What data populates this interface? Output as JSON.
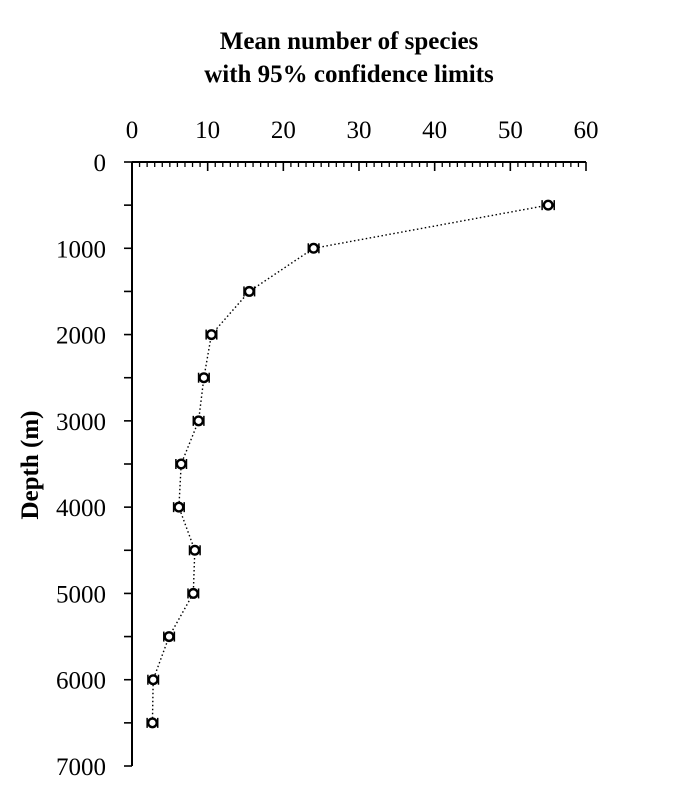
{
  "chart_data": {
    "type": "scatter",
    "title_lines": [
      "Mean number of species",
      "with 95% confidence limits"
    ],
    "xlabel": "",
    "ylabel": "Depth (m)",
    "x_axis_position": "top",
    "y_inverted": true,
    "xlim": [
      0,
      60
    ],
    "ylim": [
      0,
      7000
    ],
    "x_ticks": [
      0,
      10,
      20,
      30,
      40,
      50,
      60
    ],
    "y_ticks": [
      0,
      1000,
      2000,
      3000,
      4000,
      5000,
      6000,
      7000
    ],
    "x_minor_step": 1,
    "y_minor_step": 500,
    "grid": false,
    "line_style": "dotted",
    "marker": "open-circle",
    "series": [
      {
        "points": [
          {
            "depth": 500,
            "mean": 55.0,
            "ci_low": 54.2,
            "ci_high": 55.8
          },
          {
            "depth": 1000,
            "mean": 24.0,
            "ci_low": 23.3,
            "ci_high": 24.7
          },
          {
            "depth": 1500,
            "mean": 15.5,
            "ci_low": 14.8,
            "ci_high": 16.2
          },
          {
            "depth": 2000,
            "mean": 10.5,
            "ci_low": 9.8,
            "ci_high": 11.2
          },
          {
            "depth": 2500,
            "mean": 9.5,
            "ci_low": 8.8,
            "ci_high": 10.2
          },
          {
            "depth": 3000,
            "mean": 8.8,
            "ci_low": 8.1,
            "ci_high": 9.5
          },
          {
            "depth": 3500,
            "mean": 6.5,
            "ci_low": 5.8,
            "ci_high": 7.2
          },
          {
            "depth": 4000,
            "mean": 6.2,
            "ci_low": 5.5,
            "ci_high": 6.9
          },
          {
            "depth": 4500,
            "mean": 8.3,
            "ci_low": 7.6,
            "ci_high": 9.0
          },
          {
            "depth": 5000,
            "mean": 8.1,
            "ci_low": 7.4,
            "ci_high": 8.8
          },
          {
            "depth": 5500,
            "mean": 4.9,
            "ci_low": 4.2,
            "ci_high": 5.6
          },
          {
            "depth": 6000,
            "mean": 2.8,
            "ci_low": 2.1,
            "ci_high": 3.5
          },
          {
            "depth": 6500,
            "mean": 2.7,
            "ci_low": 2.0,
            "ci_high": 3.4
          }
        ]
      }
    ]
  }
}
